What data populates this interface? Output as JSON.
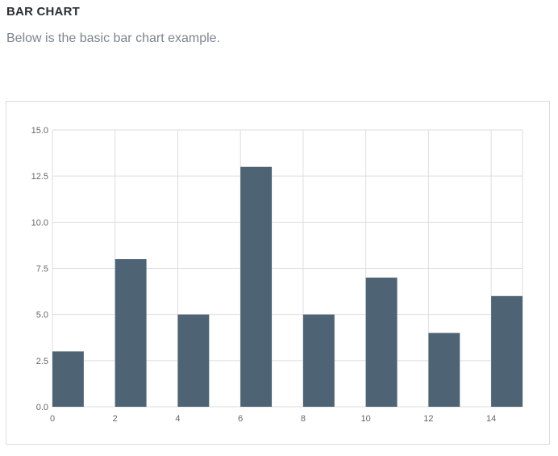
{
  "page": {
    "heading": "BAR CHART",
    "subtitle": "Below is the basic bar chart example."
  },
  "colors": {
    "bar": "#4e6374",
    "grid": "#dddddd",
    "axis_text": "#666666"
  },
  "chart_data": {
    "type": "bar",
    "x": [
      0,
      2,
      4,
      6,
      8,
      10,
      12,
      14
    ],
    "values": [
      3,
      8,
      5,
      13,
      5,
      7,
      4,
      6
    ],
    "bar_width": 1,
    "xlim": [
      0,
      15
    ],
    "ylim": [
      0,
      15
    ],
    "xticks": [
      "0",
      "2",
      "4",
      "6",
      "8",
      "10",
      "12",
      "14"
    ],
    "yticks": [
      "0.0",
      "2.5",
      "5.0",
      "7.5",
      "10.0",
      "12.5",
      "15.0"
    ],
    "grid": true,
    "legend": "none",
    "xlabel": "",
    "ylabel": ""
  }
}
